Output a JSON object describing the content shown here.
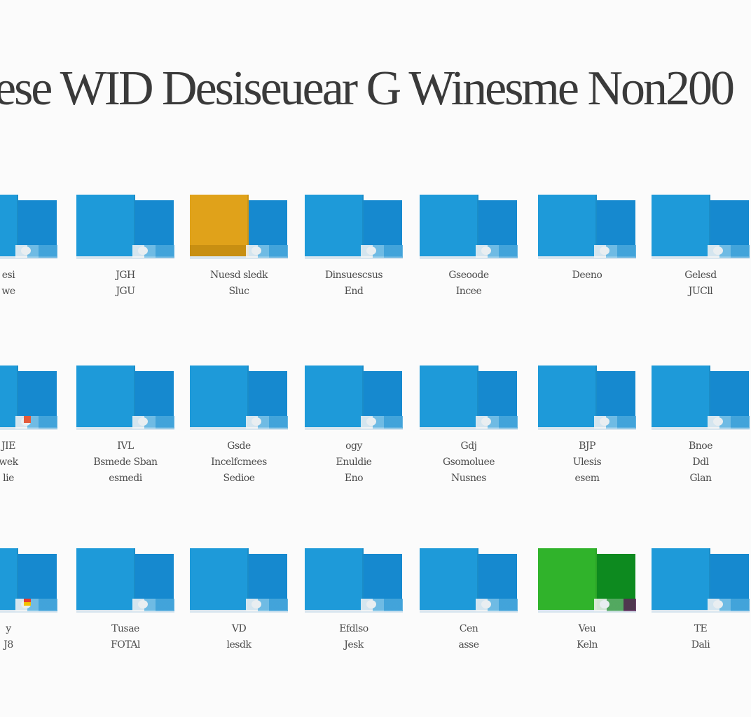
{
  "header": {
    "title": "ese WID Desiseuear G Winesme Non200"
  },
  "icons": {
    "folder": "folder-icon"
  },
  "colors": {
    "blue": "#1e9ad9",
    "blue_dark": "#1689cf",
    "orange": "#e0a21a",
    "green": "#30b32b",
    "green_dark": "#0d8a1f",
    "text": "#3a3a3a"
  },
  "rows": [
    {
      "tiles": [
        {
          "label": "esi\nwe"
        },
        {
          "label": "JGH\nJGU"
        },
        {
          "label": "Nuesd sledk\nSluc"
        },
        {
          "label": "Dinsuescsus\nEnd"
        },
        {
          "label": "Gseoode\nIncee"
        },
        {
          "label": "Deeno"
        },
        {
          "label": "Gelesd\nJUCll"
        }
      ]
    },
    {
      "tiles": [
        {
          "label": "JIE\nwek\nlie"
        },
        {
          "label": "IVL\nBsmede Sban\nesmedi"
        },
        {
          "label": "Gsde\nIncelfcmees\nSedioe"
        },
        {
          "label": "ogy\nEnuldie\nEno"
        },
        {
          "label": "Gdj\nGsomoluee\nNusnes"
        },
        {
          "label": "BJP\nUlesis\nesem"
        },
        {
          "label": "Bnoe\nDdl\nGlan"
        }
      ]
    },
    {
      "tiles": [
        {
          "label": "y\nJ8"
        },
        {
          "label": "Tusae\nFOTAl"
        },
        {
          "label": "VD\nlesdk"
        },
        {
          "label": "Efdlso\nJesk"
        },
        {
          "label": "Cen\nasse"
        },
        {
          "label": "Veu\nKeln"
        },
        {
          "label": "TE\nDali"
        }
      ]
    }
  ]
}
